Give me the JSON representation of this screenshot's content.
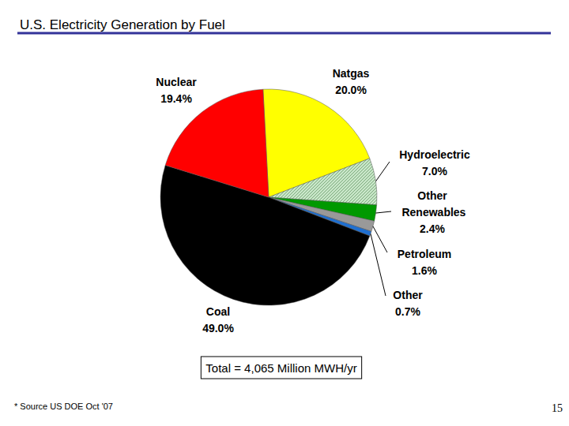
{
  "chart_data": {
    "type": "pie",
    "title": "U.S. Electricity Generation by Fuel",
    "categories": [
      "Natgas",
      "Hydroelectric",
      "Other Renewables",
      "Petroleum",
      "Other",
      "Coal",
      "Nuclear"
    ],
    "values": [
      20,
      7,
      2.4,
      1.6,
      0.7,
      49,
      19.4
    ],
    "value_labels": [
      "20.0%",
      "7.0%",
      "2.4%",
      "1.6%",
      "0.7%",
      "49.0%",
      "19.4%"
    ],
    "colors": [
      "#ffff00",
      "#c8e6c8",
      "#009900",
      "#999999",
      "#1f6fd0",
      "#000000",
      "#ff0000"
    ],
    "data_labels": true,
    "annotations": [
      "Total = 4,065 Million MWH/yr",
      "* Source US DOE Oct '07",
      "15"
    ]
  }
}
